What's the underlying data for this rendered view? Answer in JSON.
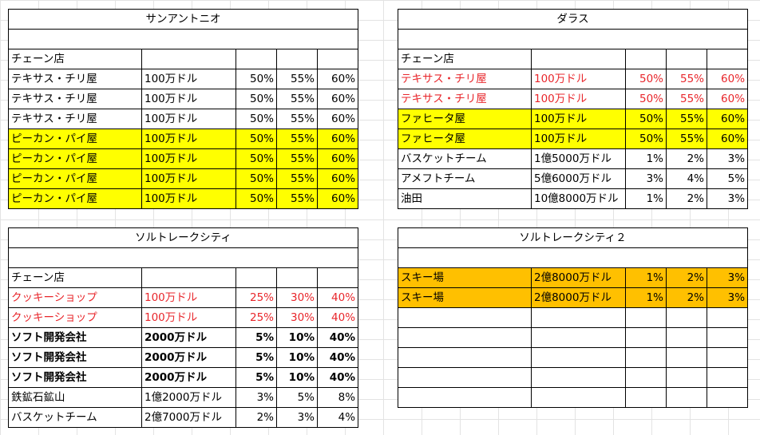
{
  "sheet": {
    "blocks": [
      {
        "title": "サンアントニオ",
        "subheader": "チェーン店",
        "rows": [
          {
            "name": "テキサス・チリ屋",
            "cost": "100万ドル",
            "p1": "50%",
            "p2": "55%",
            "p3": "60%"
          },
          {
            "name": "テキサス・チリ屋",
            "cost": "100万ドル",
            "p1": "50%",
            "p2": "55%",
            "p3": "60%"
          },
          {
            "name": "テキサス・チリ屋",
            "cost": "100万ドル",
            "p1": "50%",
            "p2": "55%",
            "p3": "60%"
          },
          {
            "name": "ピーカン・パイ屋",
            "cost": "100万ドル",
            "p1": "50%",
            "p2": "55%",
            "p3": "60%"
          },
          {
            "name": "ピーカン・パイ屋",
            "cost": "100万ドル",
            "p1": "50%",
            "p2": "55%",
            "p3": "60%"
          },
          {
            "name": "ピーカン・パイ屋",
            "cost": "100万ドル",
            "p1": "50%",
            "p2": "55%",
            "p3": "60%"
          },
          {
            "name": "ピーカン・パイ屋",
            "cost": "100万ドル",
            "p1": "50%",
            "p2": "55%",
            "p3": "60%"
          }
        ]
      },
      {
        "title": "ダラス",
        "subheader": "チェーン店",
        "rows": [
          {
            "name": "テキサス・チリ屋",
            "cost": "100万ドル",
            "p1": "50%",
            "p2": "55%",
            "p3": "60%"
          },
          {
            "name": "テキサス・チリ屋",
            "cost": "100万ドル",
            "p1": "50%",
            "p2": "55%",
            "p3": "60%"
          },
          {
            "name": "ファヒータ屋",
            "cost": "100万ドル",
            "p1": "50%",
            "p2": "55%",
            "p3": "60%"
          },
          {
            "name": "ファヒータ屋",
            "cost": "100万ドル",
            "p1": "50%",
            "p2": "55%",
            "p3": "60%"
          },
          {
            "name": "バスケットチーム",
            "cost": "1億5000万ドル",
            "p1": "1%",
            "p2": "2%",
            "p3": "3%"
          },
          {
            "name": "アメフトチーム",
            "cost": "5億6000万ドル",
            "p1": "3%",
            "p2": "4%",
            "p3": "5%"
          },
          {
            "name": "油田",
            "cost": "10億8000万ドル",
            "p1": "1%",
            "p2": "2%",
            "p3": "3%"
          }
        ]
      },
      {
        "title": "ソルトレークシティ",
        "subheader": "チェーン店",
        "rows": [
          {
            "name": "クッキーショップ",
            "cost": "100万ドル",
            "p1": "25%",
            "p2": "30%",
            "p3": "40%"
          },
          {
            "name": "クッキーショップ",
            "cost": "100万ドル",
            "p1": "25%",
            "p2": "30%",
            "p3": "40%"
          },
          {
            "name": "ソフト開発会社",
            "cost": "2000万ドル",
            "p1": "5%",
            "p2": "10%",
            "p3": "40%"
          },
          {
            "name": "ソフト開発会社",
            "cost": "2000万ドル",
            "p1": "5%",
            "p2": "10%",
            "p3": "40%"
          },
          {
            "name": "ソフト開発会社",
            "cost": "2000万ドル",
            "p1": "5%",
            "p2": "10%",
            "p3": "40%"
          },
          {
            "name": "鉄鉱石鉱山",
            "cost": "1億2000万ドル",
            "p1": "3%",
            "p2": "5%",
            "p3": "8%"
          },
          {
            "name": "バスケットチーム",
            "cost": "2億7000万ドル",
            "p1": "2%",
            "p2": "3%",
            "p3": "4%"
          }
        ]
      },
      {
        "title": "ソルトレークシティ２",
        "subheader": "",
        "rows": [
          {
            "name": "スキー場",
            "cost": "2億8000万ドル",
            "p1": "1%",
            "p2": "2%",
            "p3": "3%"
          },
          {
            "name": "スキー場",
            "cost": "2億8000万ドル",
            "p1": "1%",
            "p2": "2%",
            "p3": "3%"
          },
          {
            "name": "",
            "cost": "",
            "p1": "",
            "p2": "",
            "p3": ""
          },
          {
            "name": "",
            "cost": "",
            "p1": "",
            "p2": "",
            "p3": ""
          },
          {
            "name": "",
            "cost": "",
            "p1": "",
            "p2": "",
            "p3": ""
          },
          {
            "name": "",
            "cost": "",
            "p1": "",
            "p2": "",
            "p3": ""
          },
          {
            "name": "",
            "cost": "",
            "p1": "",
            "p2": "",
            "p3": ""
          }
        ]
      }
    ],
    "colors": {
      "red_text": "#e8262b",
      "yellow_fill": "#ffff00",
      "orange_fill": "#ffc000"
    }
  }
}
